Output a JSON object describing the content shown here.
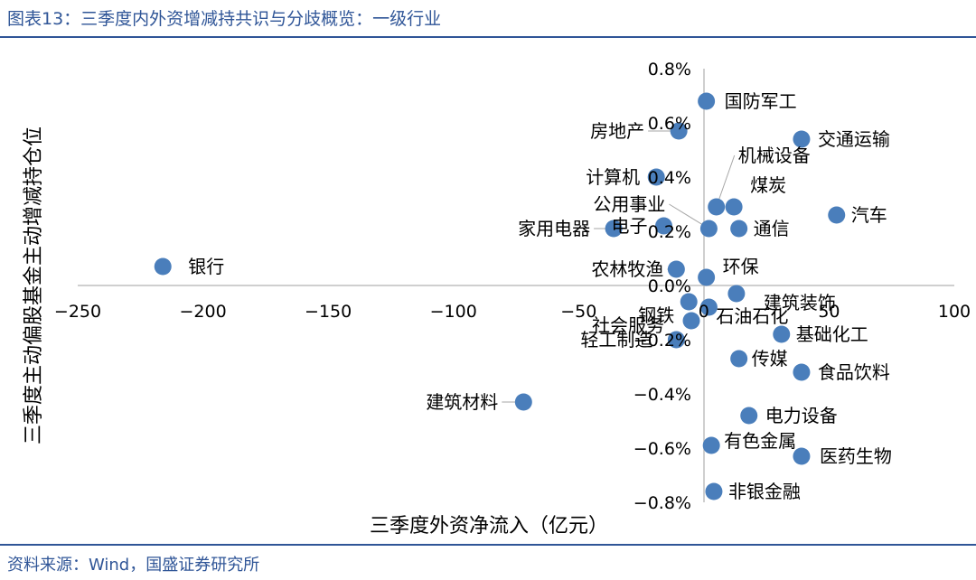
{
  "header": {
    "title": "图表13：三季度内外资增减持共识与分歧概览：一级行业"
  },
  "footer": {
    "source": "资料来源：Wind，国盛证券研究所"
  },
  "colors": {
    "accent": "#2f5597",
    "marker": "#4a7ebb"
  },
  "chart_data": {
    "type": "scatter",
    "xlabel": "三季度外资净流入（亿元）",
    "ylabel": "三季度主动偏股基金主动增减持仓位",
    "xlim": [
      -250,
      100
    ],
    "ylim": [
      -0.8,
      0.8
    ],
    "xticks": [
      "−250",
      "−200",
      "−150",
      "−100",
      "−50",
      "0",
      "50",
      "100"
    ],
    "yticks": [
      "0.8%",
      "0.6%",
      "0.4%",
      "0.2%",
      "0.0%",
      "−0.2%",
      "−0.4%",
      "−0.6%",
      "−0.8%"
    ],
    "points": [
      {
        "name": "国防军工",
        "x": 1,
        "y": 0.68
      },
      {
        "name": "房地产",
        "x": -10,
        "y": 0.57
      },
      {
        "name": "交通运输",
        "x": 39,
        "y": 0.54
      },
      {
        "name": "计算机",
        "x": -19,
        "y": 0.4
      },
      {
        "name": "机械设备",
        "x": 5,
        "y": 0.29
      },
      {
        "name": "煤炭",
        "x": 12,
        "y": 0.29
      },
      {
        "name": "汽车",
        "x": 53,
        "y": 0.26
      },
      {
        "name": "公用事业",
        "x": 2,
        "y": 0.21
      },
      {
        "name": "家用电器",
        "x": -36,
        "y": 0.21
      },
      {
        "name": "电子",
        "x": -16,
        "y": 0.22
      },
      {
        "name": "通信",
        "x": 14,
        "y": 0.21
      },
      {
        "name": "银行",
        "x": -216,
        "y": 0.07
      },
      {
        "name": "农林牧渔",
        "x": -11,
        "y": 0.06
      },
      {
        "name": "环保",
        "x": 1,
        "y": 0.03
      },
      {
        "name": "建筑装饰",
        "x": 13,
        "y": -0.03
      },
      {
        "name": "钢铁",
        "x": -6,
        "y": -0.06
      },
      {
        "name": "石油石化",
        "x": 2,
        "y": -0.08
      },
      {
        "name": "社会服务",
        "x": -5,
        "y": -0.13
      },
      {
        "name": "基础化工",
        "x": 31,
        "y": -0.18
      },
      {
        "name": "轻工制造",
        "x": -11,
        "y": -0.2
      },
      {
        "name": "传媒",
        "x": 14,
        "y": -0.27
      },
      {
        "name": "食品饮料",
        "x": 39,
        "y": -0.32
      },
      {
        "name": "建筑材料",
        "x": -72,
        "y": -0.43
      },
      {
        "name": "电力设备",
        "x": 18,
        "y": -0.48
      },
      {
        "name": "有色金属",
        "x": 3,
        "y": -0.59
      },
      {
        "name": "医药生物",
        "x": 39,
        "y": -0.63
      },
      {
        "name": "非银金融",
        "x": 4,
        "y": -0.76
      }
    ]
  }
}
